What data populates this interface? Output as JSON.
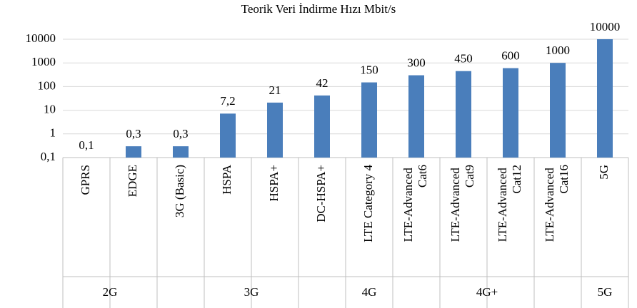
{
  "chart_data": {
    "type": "bar",
    "title": "Teorik Veri İndirme Hızı Mbit/s",
    "categories": [
      "GPRS",
      "EDGE",
      "3G (Basic)",
      "HSPA",
      "HSPA+",
      "DC-HSPA+",
      "LTE Category 4",
      "LTE-Advanced Cat6",
      "LTE-Advanced Cat9",
      "LTE-Advanced Cat12",
      "LTE-Advanced Cat16",
      "5G"
    ],
    "values": [
      0.1,
      0.3,
      0.3,
      7.2,
      21,
      42,
      150,
      300,
      450,
      600,
      1000,
      10000
    ],
    "value_labels": [
      "0,1",
      "0,3",
      "0,3",
      "7,2",
      "21",
      "42",
      "150",
      "300",
      "450",
      "600",
      "1000",
      "10000"
    ],
    "groups": [
      {
        "name": "2G",
        "start": 0,
        "end": 1
      },
      {
        "name": "3G",
        "start": 2,
        "end": 5
      },
      {
        "name": "4G",
        "start": 6,
        "end": 6
      },
      {
        "name": "4G+",
        "start": 7,
        "end": 10
      },
      {
        "name": "5G",
        "start": 11,
        "end": 11
      }
    ],
    "color": "#4a7ebb",
    "log_scale": true,
    "grid": true,
    "ylim": [
      0.1,
      10000
    ],
    "yticks": [
      {
        "value": 0.1,
        "label": "0,1"
      },
      1,
      10,
      100,
      1000,
      10000
    ]
  }
}
